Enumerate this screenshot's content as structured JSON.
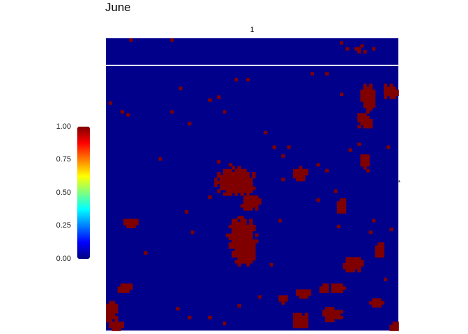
{
  "title": "June",
  "strip": {
    "top_label": "1",
    "right_label": "1"
  },
  "colors": {
    "low": "#00008B",
    "high": "#800000",
    "divider": "#ffffff",
    "legend_gradient": [
      "#00007F",
      "#0000FF",
      "#007FFF",
      "#00FFFF",
      "#7FFF7F",
      "#FFFF00",
      "#FF7F00",
      "#FF0000",
      "#7F0000"
    ]
  },
  "legend": {
    "ticks": [
      "0.00",
      "0.25",
      "0.50",
      "0.75",
      "1.00"
    ],
    "range": [
      0,
      1
    ]
  },
  "chart_data": {
    "type": "heatmap",
    "title": "June",
    "value_range": [
      0,
      1
    ],
    "grid_on": false,
    "legend_placement": "left",
    "facet_labels": {
      "top": "1",
      "right": "1"
    },
    "panels": [
      {
        "panel": "top-strip",
        "cols": 100,
        "rows": 9,
        "background_value": 0,
        "high_value": 1,
        "high_cells": [
          [
            8,
            0
          ],
          [
            22,
            0
          ],
          [
            80,
            1
          ],
          [
            82,
            3
          ],
          [
            85,
            3
          ],
          [
            87,
            2
          ],
          [
            86,
            3
          ],
          [
            91,
            3
          ],
          [
            88,
            4
          ],
          [
            86,
            4
          ]
        ]
      },
      {
        "panel": "main",
        "cols": 100,
        "rows": 90,
        "background_value": 0,
        "high_value": 1,
        "high_blobs": [
          {
            "cx": 44,
            "cy": 39,
            "rx": 6,
            "ry": 4
          },
          {
            "cx": 46,
            "cy": 37,
            "rx": 3,
            "ry": 2
          },
          {
            "cx": 49,
            "cy": 46,
            "rx": 3,
            "ry": 2
          },
          {
            "cx": 46,
            "cy": 58,
            "rx": 4,
            "ry": 6
          },
          {
            "cx": 47,
            "cy": 64,
            "rx": 3,
            "ry": 3
          },
          {
            "cx": 66,
            "cy": 36,
            "rx": 2,
            "ry": 2
          },
          {
            "cx": 89,
            "cy": 10,
            "rx": 2,
            "ry": 4
          },
          {
            "cx": 88,
            "cy": 18,
            "rx": 2,
            "ry": 2
          },
          {
            "cx": 97,
            "cy": 8,
            "rx": 2,
            "ry": 2
          },
          {
            "cx": 88,
            "cy": 32,
            "rx": 1,
            "ry": 3
          },
          {
            "cx": 80,
            "cy": 47,
            "rx": 1,
            "ry": 2
          },
          {
            "cx": 84,
            "cy": 67,
            "rx": 3,
            "ry": 2
          },
          {
            "cx": 93,
            "cy": 62,
            "rx": 1,
            "ry": 2
          },
          {
            "cx": 8,
            "cy": 53,
            "rx": 2,
            "ry": 1
          },
          {
            "cx": 6,
            "cy": 75,
            "rx": 2,
            "ry": 1
          },
          {
            "cx": 1,
            "cy": 83,
            "rx": 2,
            "ry": 3
          },
          {
            "cx": 3,
            "cy": 88,
            "rx": 2,
            "ry": 2
          },
          {
            "cx": 67,
            "cy": 77,
            "rx": 2,
            "ry": 1
          },
          {
            "cx": 74,
            "cy": 75,
            "rx": 1,
            "ry": 1
          },
          {
            "cx": 79,
            "cy": 75,
            "rx": 2,
            "ry": 1
          },
          {
            "cx": 77,
            "cy": 84,
            "rx": 3,
            "ry": 2
          },
          {
            "cx": 66,
            "cy": 86,
            "rx": 2,
            "ry": 2
          },
          {
            "cx": 92,
            "cy": 80,
            "rx": 2,
            "ry": 1
          },
          {
            "cx": 60,
            "cy": 79,
            "rx": 1,
            "ry": 1
          },
          {
            "cx": 98,
            "cy": 88,
            "rx": 1,
            "ry": 1
          }
        ],
        "high_cells": [
          [
            1,
            12
          ],
          [
            5,
            15
          ],
          [
            7,
            16
          ],
          [
            25,
            7
          ],
          [
            28,
            19
          ],
          [
            35,
            11
          ],
          [
            38,
            10
          ],
          [
            40,
            15
          ],
          [
            44,
            4
          ],
          [
            48,
            4
          ],
          [
            54,
            22
          ],
          [
            57,
            27
          ],
          [
            60,
            30
          ],
          [
            62,
            27
          ],
          [
            60,
            38
          ],
          [
            38,
            32
          ],
          [
            42,
            33
          ],
          [
            35,
            44
          ],
          [
            29,
            56
          ],
          [
            27,
            49
          ],
          [
            59,
            52
          ],
          [
            72,
            33
          ],
          [
            75,
            35
          ],
          [
            91,
            52
          ],
          [
            97,
            55
          ],
          [
            95,
            72
          ],
          [
            79,
            54
          ],
          [
            56,
            67
          ],
          [
            18,
            31
          ],
          [
            22,
            15
          ],
          [
            35,
            85
          ],
          [
            40,
            87
          ],
          [
            24,
            82
          ],
          [
            28,
            85
          ],
          [
            45,
            81
          ],
          [
            52,
            78
          ],
          [
            13,
            63
          ],
          [
            72,
            45
          ],
          [
            78,
            42
          ],
          [
            83,
            28
          ],
          [
            86,
            26
          ],
          [
            80,
            9
          ],
          [
            70,
            2
          ],
          [
            75,
            2
          ],
          [
            96,
            27
          ],
          [
            90,
            56
          ]
        ]
      }
    ]
  }
}
